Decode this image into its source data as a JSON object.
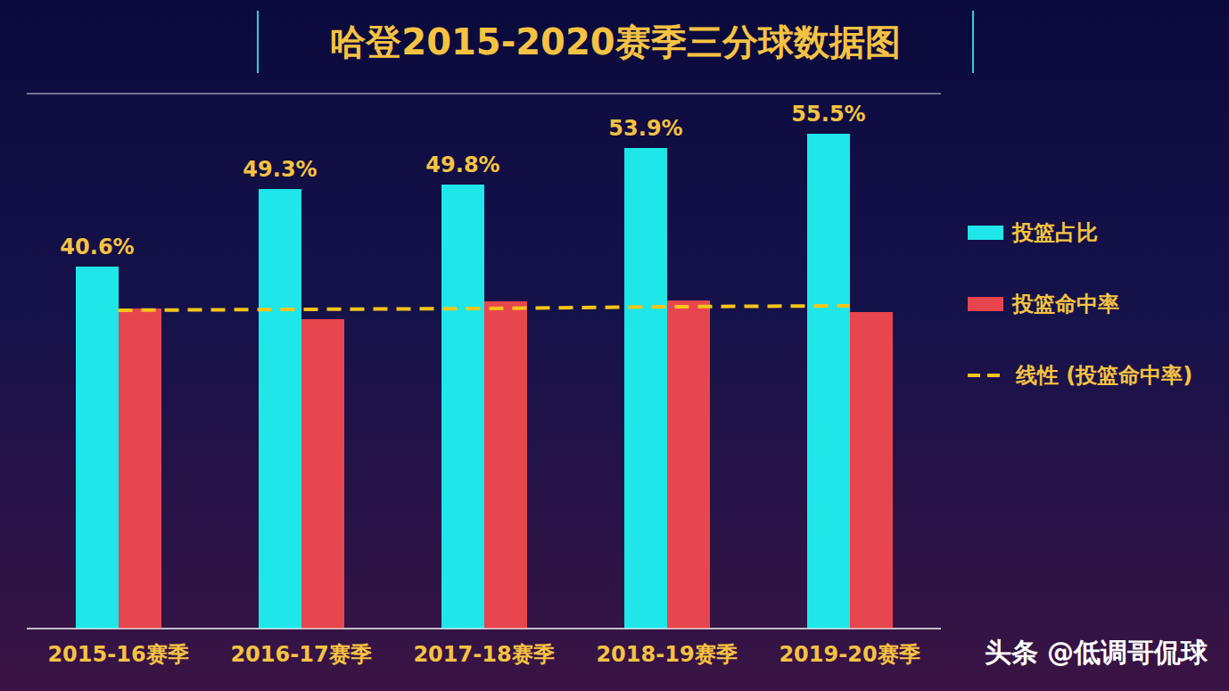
{
  "chart_data": {
    "type": "bar",
    "title": "哈登2015-2020赛季三分球数据图",
    "annotation": "头条 @低调哥侃球",
    "categories": [
      "2015-16赛季",
      "2016-17赛季",
      "2017-18赛季",
      "2018-19赛季",
      "2019-20赛季"
    ],
    "series": [
      {
        "name": "投篮占比",
        "type": "bar",
        "color": "#1fe6e8",
        "values": [
          40.6,
          49.3,
          49.8,
          53.9,
          55.5
        ],
        "value_labels": [
          "40.6%",
          "49.3%",
          "49.8%",
          "53.9%",
          "55.5%"
        ],
        "data_labels": true
      },
      {
        "name": "投篮命中率",
        "type": "bar",
        "color": "#e8464e",
        "values": [
          35.9,
          34.7,
          36.7,
          36.8,
          35.5
        ]
      },
      {
        "name": "线性 (投篮命中率)",
        "type": "line",
        "color": "#f5c518",
        "line_style": "dashed",
        "values": [
          35.7,
          35.8,
          35.9,
          36.1,
          36.2
        ]
      }
    ],
    "ylim": [
      0,
      60
    ],
    "yticks": [
      0,
      10,
      20,
      30,
      40,
      50,
      60
    ],
    "grid": true,
    "tick_labels": "x",
    "legend": "right"
  }
}
